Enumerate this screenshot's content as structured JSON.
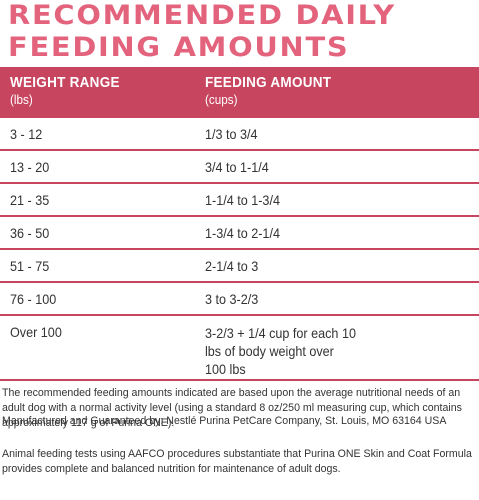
{
  "heading": {
    "line1": "RECOMMENDED DAILY",
    "line2": "FEEDING AMOUNTS"
  },
  "table": {
    "col1_header": "WEIGHT RANGE",
    "col1_unit": "(lbs)",
    "col2_header": "FEEDING AMOUNT",
    "col2_unit": "(cups)",
    "rows": [
      {
        "weight": "3  - 12",
        "amount": "1/3 to 3/4"
      },
      {
        "weight": "13 - 20",
        "amount": "3/4 to 1-1/4"
      },
      {
        "weight": "21 - 35",
        "amount": "1-1/4 to 1-3/4"
      },
      {
        "weight": "36 - 50",
        "amount": "1-3/4 to 2-1/4"
      },
      {
        "weight": "51 - 75",
        "amount": "2-1/4 to 3"
      },
      {
        "weight": "76 - 100",
        "amount": "3 to 3-2/3"
      },
      {
        "weight": "Over 100",
        "amount": "3-2/3 + 1/4 cup for each 10 lbs of body weight over 100 lbs"
      }
    ]
  },
  "notes": {
    "recommendation": "The recommended feeding amounts indicated are based upon the average nutritional needs of an adult dog with a normal activity level (using a standard 8 oz/250 ml measuring cup, which contains approximately 117 g of Purina ONE).",
    "manufacturer": "Manufactured and Guaranteed by: Nestlé Purina PetCare Company, St. Louis, MO 63164 USA",
    "aafco": "Animal feeding tests using AAFCO procedures substantiate that Purina ONE Skin and Coat Formula provides complete and balanced nutrition for maintenance of adult dogs."
  },
  "colors": {
    "accent": "#e3637d",
    "header_bg": "#c84560",
    "text": "#333333"
  }
}
